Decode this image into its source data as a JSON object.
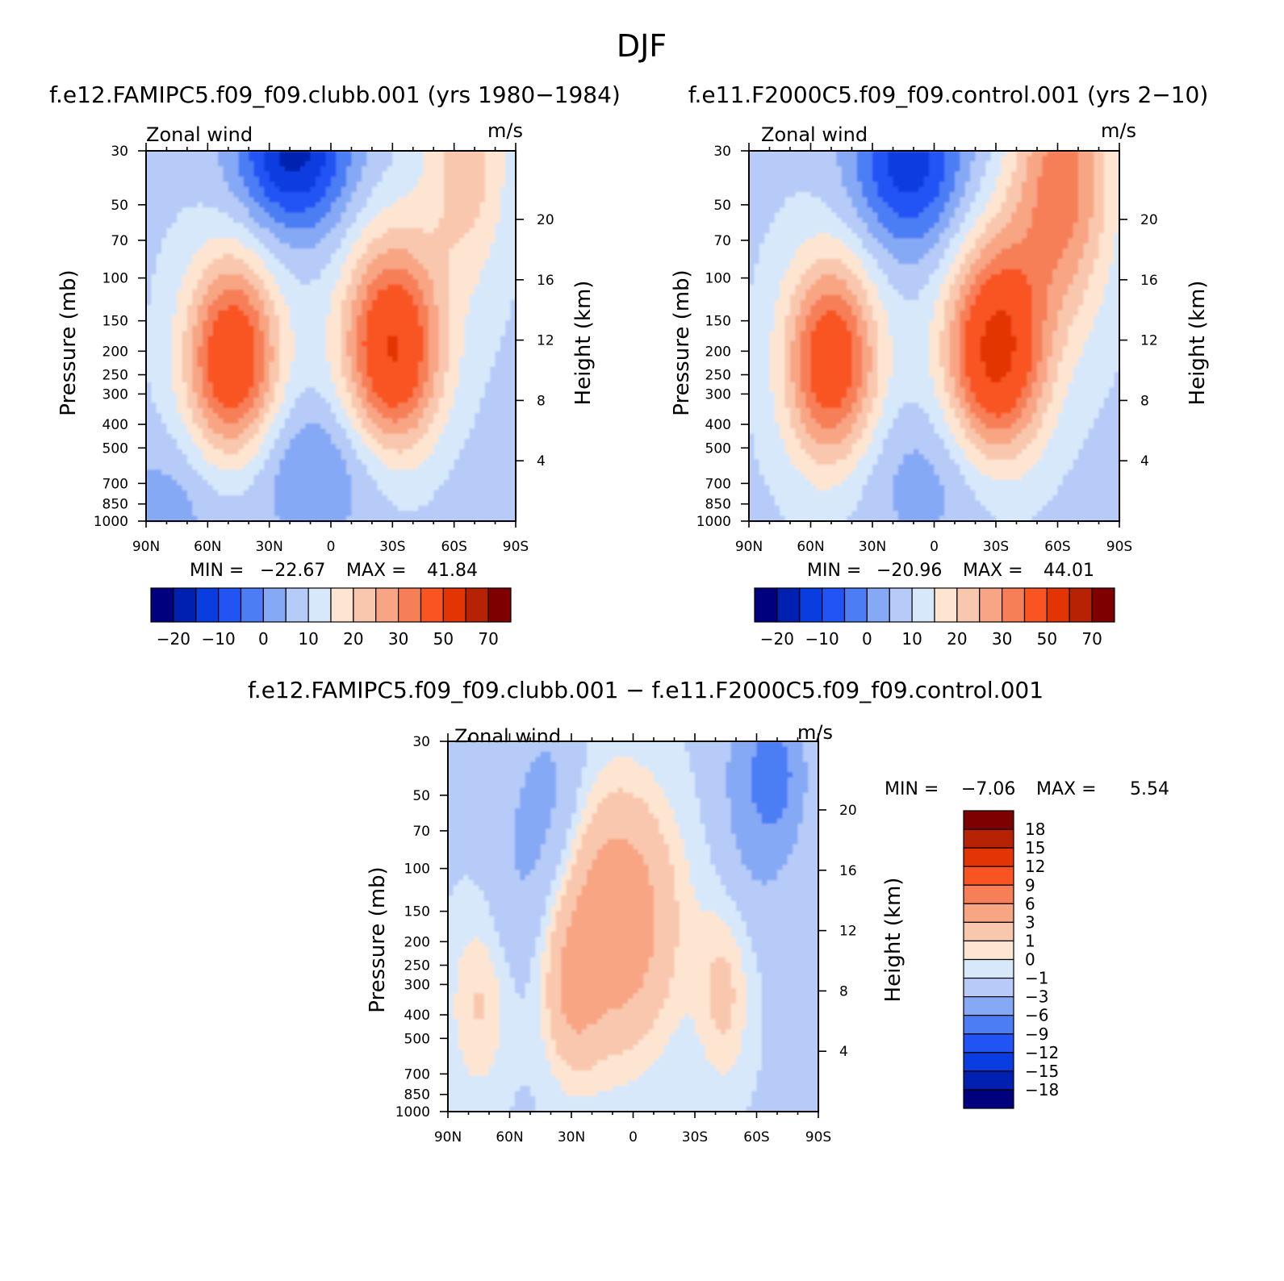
{
  "figure_title": "DJF",
  "chart_data": [
    {
      "type": "contour",
      "id": "left",
      "title": "f.e12.FAMIPC5.f09_f09.clubb.001 (yrs 1980−1984)",
      "subtitle_left": "Zonal wind",
      "units": "m/s",
      "ylabel": "Pressure (mb)",
      "ylabel_right": "Height (km)",
      "x_ticks": [
        "90N",
        "60N",
        "30N",
        "0",
        "30S",
        "60S",
        "90S"
      ],
      "y_ticks": [
        "30",
        "50",
        "70",
        "100",
        "150",
        "200",
        "250",
        "300",
        "400",
        "500",
        "700",
        "850",
        "1000"
      ],
      "y_ticks_right": [
        "20",
        "16",
        "12",
        "8",
        "4"
      ],
      "min_label": "MIN =",
      "min_value": "−22.67",
      "max_label": "MAX =",
      "max_value": "41.84",
      "colorbar_labels": [
        "−20",
        "−10",
        "0",
        "10",
        "20",
        "30",
        "50",
        "70"
      ],
      "levels": [
        -25,
        -20,
        -15,
        -10,
        -5,
        0,
        5,
        10,
        15,
        20,
        25,
        30,
        40,
        50,
        60,
        70
      ]
    },
    {
      "type": "contour",
      "id": "right",
      "title": "f.e11.F2000C5.f09_f09.control.001 (yrs 2−10)",
      "subtitle_left": "Zonal wind",
      "units": "m/s",
      "ylabel": "Pressure (mb)",
      "ylabel_right": "Height (km)",
      "x_ticks": [
        "90N",
        "60N",
        "30N",
        "0",
        "30S",
        "60S",
        "90S"
      ],
      "y_ticks": [
        "30",
        "50",
        "70",
        "100",
        "150",
        "200",
        "250",
        "300",
        "400",
        "500",
        "700",
        "850",
        "1000"
      ],
      "y_ticks_right": [
        "20",
        "16",
        "12",
        "8",
        "4"
      ],
      "min_label": "MIN =",
      "min_value": "−20.96",
      "max_label": "MAX =",
      "max_value": "44.01",
      "colorbar_labels": [
        "−20",
        "−10",
        "0",
        "10",
        "20",
        "30",
        "50",
        "70"
      ],
      "levels": [
        -25,
        -20,
        -15,
        -10,
        -5,
        0,
        5,
        10,
        15,
        20,
        25,
        30,
        40,
        50,
        60,
        70
      ]
    },
    {
      "type": "contour",
      "id": "diff",
      "title": "f.e12.FAMIPC5.f09_f09.clubb.001 − f.e11.F2000C5.f09_f09.control.001",
      "subtitle_left": "Zonal wind",
      "units": "m/s",
      "ylabel": "Pressure (mb)",
      "ylabel_right": "Height (km)",
      "x_ticks": [
        "90N",
        "60N",
        "30N",
        "0",
        "30S",
        "60S",
        "90S"
      ],
      "y_ticks": [
        "30",
        "50",
        "70",
        "100",
        "150",
        "200",
        "250",
        "300",
        "400",
        "500",
        "700",
        "850",
        "1000"
      ],
      "y_ticks_right": [
        "20",
        "16",
        "12",
        "8",
        "4"
      ],
      "min_label": "MIN =",
      "min_value": "−7.06",
      "max_label": "MAX =",
      "max_value": "5.54",
      "colorbar_labels": [
        "18",
        "15",
        "12",
        "9",
        "6",
        "3",
        "1",
        "0",
        "−1",
        "−3",
        "−6",
        "−9",
        "−12",
        "−15",
        "−18"
      ],
      "levels": [
        -18,
        -15,
        -12,
        -9,
        -6,
        -3,
        -1,
        0,
        1,
        3,
        6,
        9,
        12,
        15,
        18
      ]
    }
  ],
  "colors": {
    "palette": [
      "#00007f",
      "#0020b0",
      "#0a3de0",
      "#2253f5",
      "#4c7df5",
      "#86a9f5",
      "#b6cbf7",
      "#d7e8fb",
      "#fde5d1",
      "#f9c7ad",
      "#f8a584",
      "#f77f58",
      "#f95422",
      "#e33406",
      "#b82204",
      "#7e0000"
    ]
  }
}
